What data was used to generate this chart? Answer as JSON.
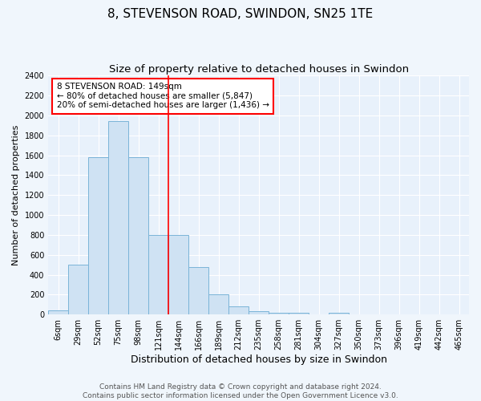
{
  "title": "8, STEVENSON ROAD, SWINDON, SN25 1TE",
  "subtitle": "Size of property relative to detached houses in Swindon",
  "xlabel": "Distribution of detached houses by size in Swindon",
  "ylabel": "Number of detached properties",
  "bar_labels": [
    "6sqm",
    "29sqm",
    "52sqm",
    "75sqm",
    "98sqm",
    "121sqm",
    "144sqm",
    "166sqm",
    "189sqm",
    "212sqm",
    "235sqm",
    "258sqm",
    "281sqm",
    "304sqm",
    "327sqm",
    "350sqm",
    "373sqm",
    "396sqm",
    "419sqm",
    "442sqm",
    "465sqm"
  ],
  "bar_heights": [
    40,
    500,
    1580,
    1940,
    1580,
    800,
    800,
    480,
    200,
    80,
    30,
    20,
    20,
    0,
    20,
    0,
    0,
    0,
    0,
    0,
    0
  ],
  "bar_color": "#cfe2f3",
  "bar_edge_color": "#7ab4d8",
  "vline_x": 5.5,
  "vline_color": "red",
  "annotation_text": "8 STEVENSON ROAD: 149sqm\n← 80% of detached houses are smaller (5,847)\n20% of semi-detached houses are larger (1,436) →",
  "annotation_box_color": "white",
  "annotation_box_edge_color": "red",
  "ylim": [
    0,
    2400
  ],
  "yticks": [
    0,
    200,
    400,
    600,
    800,
    1000,
    1200,
    1400,
    1600,
    1800,
    2000,
    2200,
    2400
  ],
  "footer_line1": "Contains HM Land Registry data © Crown copyright and database right 2024.",
  "footer_line2": "Contains public sector information licensed under the Open Government Licence v3.0.",
  "background_color": "#f0f6fc",
  "plot_bg_color": "#e8f1fb",
  "grid_color": "white",
  "title_fontsize": 11,
  "subtitle_fontsize": 9.5,
  "xlabel_fontsize": 9,
  "ylabel_fontsize": 8,
  "tick_fontsize": 7,
  "footer_fontsize": 6.5,
  "annot_fontsize": 7.5
}
